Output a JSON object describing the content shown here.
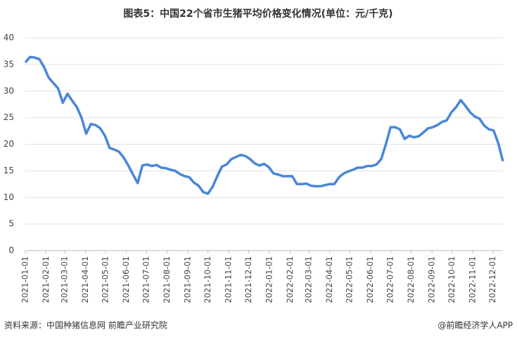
{
  "chart_data": {
    "type": "line",
    "title": "图表5：中国22个省市生猪平均价格变化情况(单位：元/千克)",
    "source": "资料来源：中国种猪信息网 前瞻产业研究院",
    "credit": "@前瞻经济学人APP",
    "x": [
      "2021-01-01",
      "2021-01-08",
      "2021-01-15",
      "2021-01-22",
      "2021-01-29",
      "2021-02-05",
      "2021-02-12",
      "2021-02-19",
      "2021-02-26",
      "2021-03-05",
      "2021-03-12",
      "2021-03-19",
      "2021-03-26",
      "2021-04-02",
      "2021-04-09",
      "2021-04-16",
      "2021-04-23",
      "2021-04-30",
      "2021-05-07",
      "2021-05-14",
      "2021-05-21",
      "2021-05-28",
      "2021-06-04",
      "2021-06-11",
      "2021-06-18",
      "2021-06-25",
      "2021-07-02",
      "2021-07-09",
      "2021-07-16",
      "2021-07-23",
      "2021-07-30",
      "2021-08-06",
      "2021-08-13",
      "2021-08-20",
      "2021-08-27",
      "2021-09-03",
      "2021-09-10",
      "2021-09-17",
      "2021-09-24",
      "2021-10-01",
      "2021-10-08",
      "2021-10-15",
      "2021-10-22",
      "2021-10-29",
      "2021-11-05",
      "2021-11-12",
      "2021-11-19",
      "2021-11-26",
      "2021-12-03",
      "2021-12-10",
      "2021-12-17",
      "2021-12-24",
      "2021-12-31",
      "2022-01-07",
      "2022-01-14",
      "2022-01-21",
      "2022-01-28",
      "2022-02-04",
      "2022-02-11",
      "2022-02-18",
      "2022-02-25",
      "2022-03-04",
      "2022-03-11",
      "2022-03-18",
      "2022-03-25",
      "2022-04-01",
      "2022-04-08",
      "2022-04-15",
      "2022-04-22",
      "2022-04-29",
      "2022-05-06",
      "2022-05-13",
      "2022-05-20",
      "2022-05-27",
      "2022-06-03",
      "2022-06-10",
      "2022-06-17",
      "2022-06-24",
      "2022-07-01",
      "2022-07-08",
      "2022-07-15",
      "2022-07-22",
      "2022-07-29",
      "2022-08-05",
      "2022-08-12",
      "2022-08-19",
      "2022-08-26",
      "2022-09-02",
      "2022-09-09",
      "2022-09-16",
      "2022-09-23",
      "2022-09-30",
      "2022-10-07",
      "2022-10-14",
      "2022-10-21",
      "2022-10-28",
      "2022-11-04",
      "2022-11-11",
      "2022-11-18",
      "2022-11-25",
      "2022-12-02",
      "2022-12-09",
      "2022-12-16"
    ],
    "series": [
      {
        "color": "#4a86d8",
        "values": [
          35.4,
          36.4,
          36.3,
          36.0,
          34.5,
          32.5,
          31.5,
          30.5,
          27.8,
          29.5,
          28.2,
          27.0,
          25.0,
          22.0,
          23.8,
          23.6,
          23.0,
          21.6,
          19.3,
          19.0,
          18.6,
          17.5,
          16.0,
          14.3,
          12.7,
          16.0,
          16.2,
          15.9,
          16.1,
          15.6,
          15.5,
          15.2,
          15.0,
          14.4,
          14.0,
          13.8,
          12.8,
          12.2,
          11.0,
          10.7,
          12.0,
          14.0,
          15.8,
          16.2,
          17.2,
          17.6,
          18.0,
          17.8,
          17.2,
          16.4,
          16.0,
          16.3,
          15.7,
          14.5,
          14.3,
          14.0,
          14.0,
          14.0,
          12.5,
          12.5,
          12.6,
          12.2,
          12.1,
          12.1,
          12.3,
          12.5,
          12.5,
          13.8,
          14.5,
          14.9,
          15.2,
          15.6,
          15.6,
          15.9,
          15.9,
          16.2,
          17.2,
          20.0,
          23.2,
          23.2,
          22.8,
          21.0,
          21.6,
          21.3,
          21.5,
          22.2,
          23.0,
          23.2,
          23.6,
          24.2,
          24.5,
          26.0,
          27.0,
          28.3,
          27.2,
          26.0,
          25.2,
          24.8,
          23.5,
          22.8,
          22.6,
          20.2,
          16.8
        ]
      }
    ],
    "xlim": [
      "2021-01-01",
      "2022-12-16"
    ],
    "xticks": [
      "2021-01-01",
      "2021-02-01",
      "2021-03-01",
      "2021-04-01",
      "2021-05-01",
      "2021-06-01",
      "2021-07-01",
      "2021-08-01",
      "2021-09-01",
      "2021-10-01",
      "2021-11-01",
      "2021-12-01",
      "2022-01-01",
      "2022-02-01",
      "2022-03-01",
      "2022-04-01",
      "2022-05-01",
      "2022-06-01",
      "2022-07-01",
      "2022-08-01",
      "2022-09-01",
      "2022-10-01",
      "2022-11-01",
      "2022-12-01"
    ],
    "ylim": [
      0,
      40
    ],
    "yticks": [
      0,
      5,
      10,
      15,
      20,
      25,
      30,
      35,
      40
    ],
    "grid": true
  }
}
